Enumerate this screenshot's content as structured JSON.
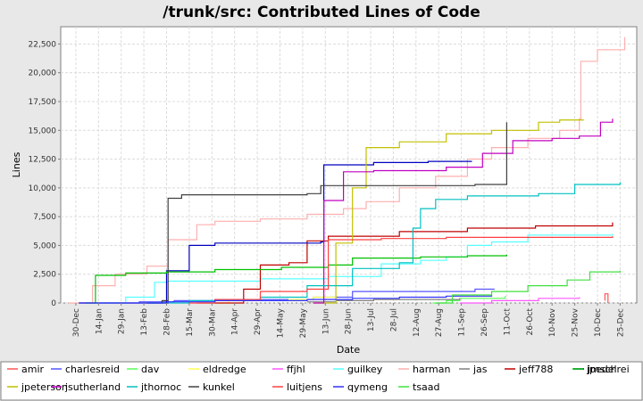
{
  "chart_data": {
    "type": "line",
    "title": "/trunk/src: Contributed Lines of Code",
    "xlabel": "Date",
    "ylabel": "Lines",
    "ylim": [
      0,
      24000
    ],
    "xlim": [
      "2006-12-20",
      "2008-01-05"
    ],
    "grid": true,
    "legend_position": "bottom",
    "x_ticks": [
      "30-Dec",
      "14-Jan",
      "29-Jan",
      "13-Feb",
      "28-Feb",
      "15-Mar",
      "30-Mar",
      "14-Apr",
      "29-Apr",
      "14-May",
      "29-May",
      "13-Jun",
      "28-Jun",
      "13-Jul",
      "28-Jul",
      "12-Aug",
      "27-Aug",
      "11-Sep",
      "26-Sep",
      "11-Oct",
      "26-Oct",
      "10-Nov",
      "25-Nov",
      "10-Dec",
      "25-Dec"
    ],
    "x_tick_dates": [
      "2006-12-30",
      "2007-01-14",
      "2007-01-29",
      "2007-02-13",
      "2007-02-28",
      "2007-03-15",
      "2007-03-30",
      "2007-04-14",
      "2007-04-29",
      "2007-05-14",
      "2007-05-29",
      "2007-06-13",
      "2007-06-28",
      "2007-07-13",
      "2007-07-28",
      "2007-08-12",
      "2007-08-27",
      "2007-09-11",
      "2007-09-26",
      "2007-10-11",
      "2007-10-26",
      "2007-11-10",
      "2007-11-25",
      "2007-12-10",
      "2007-12-25"
    ],
    "y_ticks": [
      "0",
      "2,500",
      "5,000",
      "7,500",
      "10,000",
      "12,500",
      "15,000",
      "17,500",
      "20,000",
      "22,500"
    ],
    "y_tick_values": [
      0,
      2500,
      5000,
      7500,
      10000,
      12500,
      15000,
      17500,
      20000,
      22500
    ],
    "series": [
      {
        "name": "amir",
        "color": "#ff5555",
        "x": [
          "2007-12-15",
          "2007-12-15",
          "2007-12-17"
        ],
        "y": [
          200,
          800,
          0
        ]
      },
      {
        "name": "charlesreid",
        "color": "#5555ff",
        "x": [
          "2007-01-01",
          "2007-02-10",
          "2007-03-05",
          "2007-05-01",
          "2007-06-05",
          "2007-07-01",
          "2007-09-20",
          "2007-10-03"
        ],
        "y": [
          0,
          100,
          200,
          300,
          500,
          1000,
          1200,
          1200
        ]
      },
      {
        "name": "dav",
        "color": "#55ff55",
        "x": [
          "2007-08-23",
          "2007-09-01",
          "2007-09-10",
          "2007-10-10"
        ],
        "y": [
          0,
          200,
          400,
          600
        ]
      },
      {
        "name": "eldredge",
        "color": "#ffff55",
        "x": [
          "2007-03-25",
          "2007-04-10",
          "2007-05-20",
          "2007-06-05",
          "2007-06-20"
        ],
        "y": [
          0,
          200,
          300,
          500,
          600
        ]
      },
      {
        "name": "ffjhl",
        "color": "#ff55ff",
        "x": [
          "2007-09-10",
          "2007-10-01",
          "2007-11-01",
          "2007-11-28"
        ],
        "y": [
          0,
          200,
          400,
          500
        ]
      },
      {
        "name": "guilkey",
        "color": "#55ffff",
        "x": [
          "2007-01-05",
          "2007-02-01",
          "2007-02-20",
          "2007-03-01",
          "2007-05-01",
          "2007-06-15",
          "2007-07-20",
          "2007-08-15",
          "2007-09-01",
          "2007-09-15",
          "2007-10-01",
          "2007-10-25",
          "2007-12-20"
        ],
        "y": [
          0,
          500,
          1800,
          1900,
          2100,
          2300,
          3400,
          3700,
          4000,
          5000,
          5300,
          5900,
          6000
        ]
      },
      {
        "name": "harman",
        "color": "#ffafaf",
        "x": [
          "2006-12-25",
          "2007-01-10",
          "2007-01-25",
          "2007-02-15",
          "2007-03-01",
          "2007-03-20",
          "2007-04-01",
          "2007-05-01",
          "2007-06-01",
          "2007-06-25",
          "2007-07-10",
          "2007-08-01",
          "2007-08-25",
          "2007-09-15",
          "2007-10-01",
          "2007-10-25",
          "2007-11-15",
          "2007-11-28",
          "2007-11-29",
          "2007-12-10",
          "2007-12-28"
        ],
        "y": [
          0,
          1500,
          2500,
          3200,
          5500,
          6800,
          7100,
          7300,
          7700,
          8200,
          8800,
          10000,
          11000,
          12500,
          13500,
          14300,
          15000,
          16000,
          21000,
          22000,
          23100
        ]
      },
      {
        "name": "jas",
        "color": "#808080",
        "x": [
          "2007-06-01",
          "2007-06-20",
          "2007-07-15",
          "2007-09-10"
        ],
        "y": [
          100,
          200,
          300,
          400
        ]
      },
      {
        "name": "jeff788",
        "color": "#c00000",
        "x": [
          "2007-03-20",
          "2007-04-20",
          "2007-05-01",
          "2007-05-20",
          "2007-06-01",
          "2007-06-15",
          "2007-08-01",
          "2007-09-15",
          "2007-10-30",
          "2007-12-20"
        ],
        "y": [
          0,
          1200,
          3300,
          3500,
          5400,
          5800,
          6200,
          6500,
          6700,
          7000
        ]
      },
      {
        "name": "jmschrei",
        "color": "#0000c0",
        "x": [
          "2007-02-15",
          "2007-02-28",
          "2007-03-15",
          "2007-04-01",
          "2007-06-10",
          "2007-06-12",
          "2007-07-15",
          "2007-08-20",
          "2007-09-18"
        ],
        "y": [
          0,
          2800,
          5000,
          5200,
          5300,
          12000,
          12200,
          12300,
          12300
        ]
      },
      {
        "name": "jpedel",
        "color": "#00c000",
        "x": [
          "2007-01-05",
          "2007-01-12",
          "2007-02-01",
          "2007-02-28",
          "2007-04-01",
          "2007-05-15",
          "2007-06-15",
          "2007-07-01",
          "2007-08-15",
          "2007-09-15",
          "2007-10-11"
        ],
        "y": [
          0,
          2400,
          2600,
          2700,
          2900,
          3100,
          3300,
          3900,
          4000,
          4100,
          4200
        ]
      },
      {
        "name": "jpeterson",
        "color": "#c0c000",
        "x": [
          "2007-06-05",
          "2007-06-20",
          "2007-07-01",
          "2007-07-10",
          "2007-08-01",
          "2007-09-01",
          "2007-10-01",
          "2007-11-01",
          "2007-11-15",
          "2007-12-01"
        ],
        "y": [
          0,
          5200,
          10000,
          13500,
          14000,
          14700,
          15000,
          15700,
          15900,
          15900
        ]
      },
      {
        "name": "jsutherland",
        "color": "#c000c0",
        "x": [
          "2007-06-05",
          "2007-06-12",
          "2007-06-25",
          "2007-07-15",
          "2007-09-01",
          "2007-09-25",
          "2007-10-15",
          "2007-11-10",
          "2007-11-28",
          "2007-12-12",
          "2007-12-20"
        ],
        "y": [
          0,
          8900,
          11400,
          11500,
          11800,
          13000,
          14100,
          14300,
          14500,
          15700,
          16000
        ]
      },
      {
        "name": "jthornoc",
        "color": "#00c0c0",
        "x": [
          "2007-02-15",
          "2007-03-15",
          "2007-05-01",
          "2007-06-01",
          "2007-07-01",
          "2007-08-01",
          "2007-08-10",
          "2007-08-15",
          "2007-08-25",
          "2007-09-15",
          "2007-11-01",
          "2007-11-25",
          "2007-12-25"
        ],
        "y": [
          0,
          200,
          500,
          1500,
          3000,
          3500,
          6500,
          8200,
          9000,
          9300,
          9500,
          10300,
          10500
        ]
      },
      {
        "name": "kunkel",
        "color": "#404040",
        "x": [
          "2007-01-01",
          "2007-02-25",
          "2007-03-01",
          "2007-03-10",
          "2007-06-01",
          "2007-06-10",
          "2007-09-20",
          "2007-10-11"
        ],
        "y": [
          0,
          200,
          9100,
          9400,
          9500,
          10200,
          10300,
          15700
        ]
      },
      {
        "name": "luitjens",
        "color": "#ff4040",
        "x": [
          "2007-03-15",
          "2007-04-01",
          "2007-05-01",
          "2007-06-01",
          "2007-06-15",
          "2007-07-20",
          "2007-09-01",
          "2007-10-15",
          "2007-12-20"
        ],
        "y": [
          0,
          300,
          1000,
          1200,
          5500,
          5600,
          5700,
          5700,
          5800
        ]
      },
      {
        "name": "qymeng",
        "color": "#3030ff",
        "x": [
          "2007-01-01",
          "2007-03-01",
          "2007-04-01",
          "2007-06-01",
          "2007-07-01",
          "2007-08-01",
          "2007-09-01",
          "2007-10-01"
        ],
        "y": [
          0,
          100,
          200,
          300,
          400,
          500,
          600,
          700
        ]
      },
      {
        "name": "tsaad",
        "color": "#40e040",
        "x": [
          "2007-08-25",
          "2007-09-05",
          "2007-10-01",
          "2007-10-25",
          "2007-11-20",
          "2007-12-05",
          "2007-12-25"
        ],
        "y": [
          0,
          700,
          1000,
          1500,
          2000,
          2700,
          2800
        ]
      }
    ]
  }
}
